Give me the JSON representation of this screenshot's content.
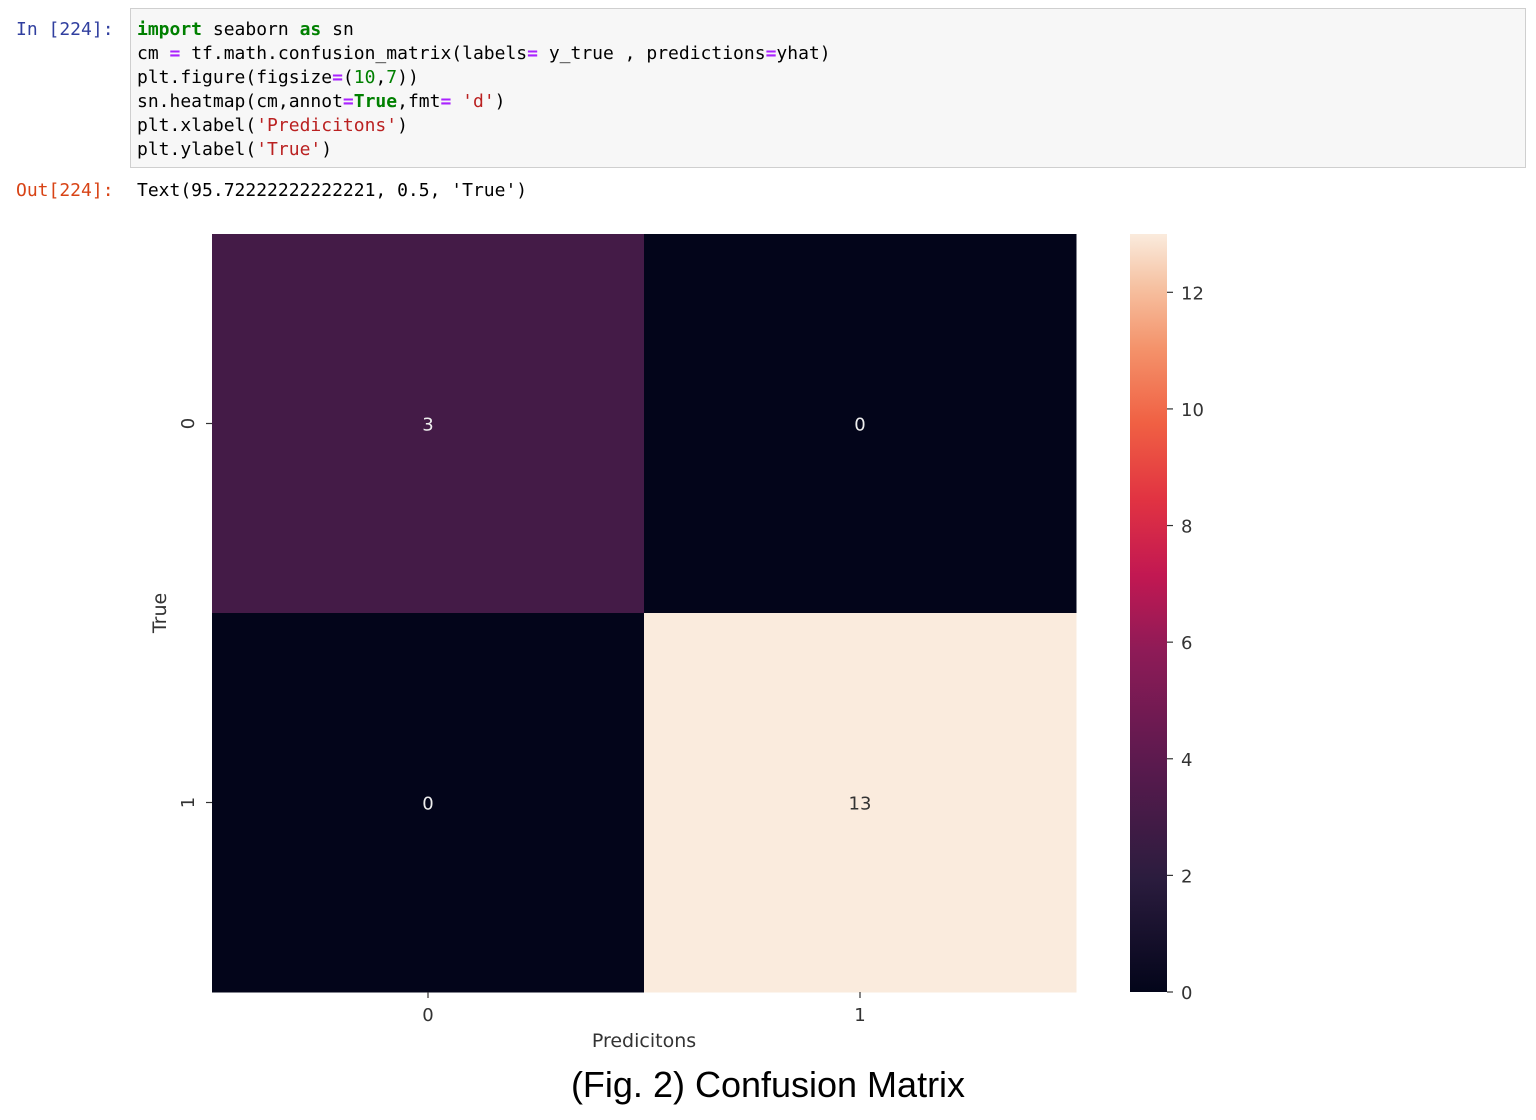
{
  "notebook": {
    "in_prompt": "In [224]:",
    "out_prompt": "Out[224]:",
    "code_lines": [
      [
        {
          "t": "import",
          "c": "kw"
        },
        {
          "t": " seaborn "
        },
        {
          "t": "as",
          "c": "kw"
        },
        {
          "t": " sn"
        }
      ],
      [
        {
          "t": "cm "
        },
        {
          "t": "=",
          "c": "op"
        },
        {
          "t": " tf.math.confusion_matrix(labels"
        },
        {
          "t": "=",
          "c": "op"
        },
        {
          "t": " y_true , predictions"
        },
        {
          "t": "=",
          "c": "op"
        },
        {
          "t": "yhat)"
        }
      ],
      [
        {
          "t": "plt.figure(figsize"
        },
        {
          "t": "=",
          "c": "op"
        },
        {
          "t": "("
        },
        {
          "t": "10",
          "c": "num"
        },
        {
          "t": ","
        },
        {
          "t": "7",
          "c": "num"
        },
        {
          "t": "))"
        }
      ],
      [
        {
          "t": "sn.heatmap(cm,annot"
        },
        {
          "t": "=",
          "c": "op"
        },
        {
          "t": "True",
          "c": "kw"
        },
        {
          "t": ",fmt"
        },
        {
          "t": "=",
          "c": "op"
        },
        {
          "t": " "
        },
        {
          "t": "'d'",
          "c": "str"
        },
        {
          "t": ")"
        }
      ],
      [
        {
          "t": "plt.xlabel("
        },
        {
          "t": "'Predicitons'",
          "c": "str"
        },
        {
          "t": ")"
        }
      ],
      [
        {
          "t": "plt.ylabel("
        },
        {
          "t": "'True'",
          "c": "str"
        },
        {
          "t": ")"
        }
      ]
    ],
    "output_text": "Text(95.72222222222221, 0.5, 'True')"
  },
  "caption": "(Fig. 2) Confusion Matrix",
  "chart_data": {
    "type": "heatmap",
    "rows": [
      "0",
      "1"
    ],
    "cols": [
      "0",
      "1"
    ],
    "values": [
      [
        3,
        0
      ],
      [
        0,
        13
      ]
    ],
    "xlabel": "Predicitons",
    "ylabel": "True",
    "colormap": "rocket",
    "colorbar": {
      "min": 0,
      "max": 13,
      "ticks": [
        0,
        2,
        4,
        6,
        8,
        10,
        12
      ]
    }
  }
}
